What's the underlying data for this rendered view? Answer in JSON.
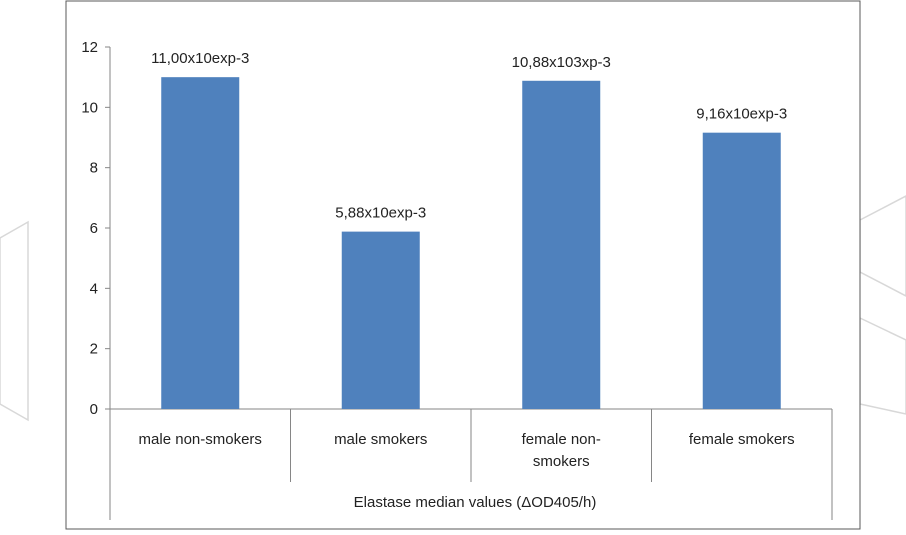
{
  "chart_data": {
    "type": "bar",
    "categories": [
      [
        "male non-smokers"
      ],
      [
        "male smokers"
      ],
      [
        "female non-",
        "smokers"
      ],
      [
        "female smokers"
      ]
    ],
    "values": [
      11.0,
      5.88,
      10.88,
      9.16
    ],
    "data_labels": [
      "11,00x10exp-3",
      "5,88x10exp-3",
      "10,88x103xp-3",
      "9,16x10exp-3"
    ],
    "y_ticks": [
      "0",
      "2",
      "4",
      "6",
      "8",
      "10",
      "12"
    ],
    "ylim": [
      0,
      12
    ],
    "xlabel": "Elastase median values (ΔOD405/h)",
    "title": "",
    "ylabel": "",
    "grid": false,
    "legend": "none",
    "bar_color": "#4f81bd",
    "axis_color": "#868686",
    "frame_color": "#595959"
  }
}
